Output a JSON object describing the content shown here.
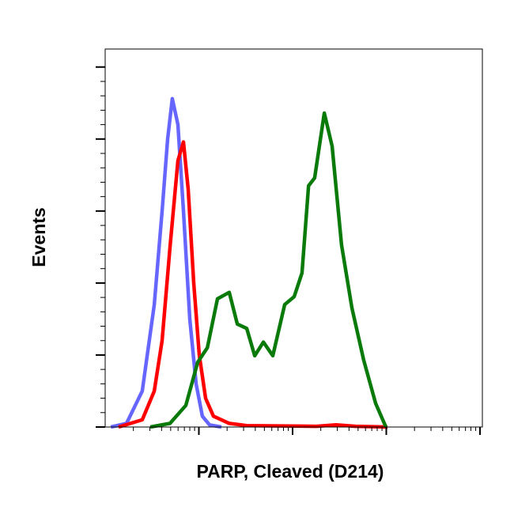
{
  "chart_data": {
    "type": "line",
    "x_label": "PARP, Cleaved (D214)",
    "y_label": "Events",
    "log_x": true,
    "xlim": [
      10,
      100000
    ],
    "xticks": [
      100,
      1000,
      10000,
      100000
    ],
    "xticks_minor": [
      20,
      30,
      40,
      50,
      60,
      70,
      80,
      90,
      200,
      300,
      400,
      500,
      600,
      700,
      800,
      900,
      2000,
      3000,
      4000,
      5000,
      6000,
      7000,
      8000,
      9000,
      20000,
      30000,
      40000,
      50000,
      60000,
      70000,
      80000,
      90000
    ],
    "ylim": [
      0,
      525
    ],
    "yticks": [
      0,
      100,
      200,
      300,
      400,
      500
    ],
    "yticks_minor": [
      20,
      40,
      60,
      80,
      120,
      140,
      160,
      180,
      220,
      240,
      260,
      280,
      320,
      340,
      360,
      380,
      420,
      440,
      460,
      480
    ],
    "series": [
      {
        "color": "#5555ff",
        "x": [
          11.5,
          16.9,
          24.9,
          33.4,
          40.5,
          46.4,
          52.1,
          59.7,
          68.4,
          80.0,
          93.4,
          109,
          130,
          174
        ],
        "values": [
          0,
          5,
          50,
          170,
          300,
          400,
          456,
          420,
          300,
          150,
          60,
          15,
          3,
          0
        ]
      },
      {
        "color": "#ff0000",
        "x": [
          13.9,
          24.9,
          33.4,
          40.5,
          49.2,
          59.7,
          68.4,
          76.9,
          88.1,
          101,
          118,
          143,
          211,
          324,
          1790,
          2910,
          4730,
          10300
        ],
        "values": [
          0,
          10,
          50,
          120,
          250,
          370,
          396,
          330,
          200,
          100,
          40,
          15,
          5,
          2,
          1,
          3,
          1,
          0
        ]
      },
      {
        "color": "#0a7a0a",
        "x": [
          30.3,
          49.2,
          72.6,
          97.1,
          123,
          158,
          211,
          257,
          324,
          394,
          488,
          615,
          824,
          1040,
          1260,
          1480,
          1720,
          2180,
          2640,
          3330,
          4300,
          5740,
          7690,
          9910
        ],
        "values": [
          0,
          5,
          30,
          90,
          110,
          178,
          187,
          143,
          137,
          99,
          118,
          99,
          170,
          181,
          214,
          335,
          346,
          436,
          390,
          253,
          165,
          93,
          33,
          0
        ]
      }
    ]
  }
}
